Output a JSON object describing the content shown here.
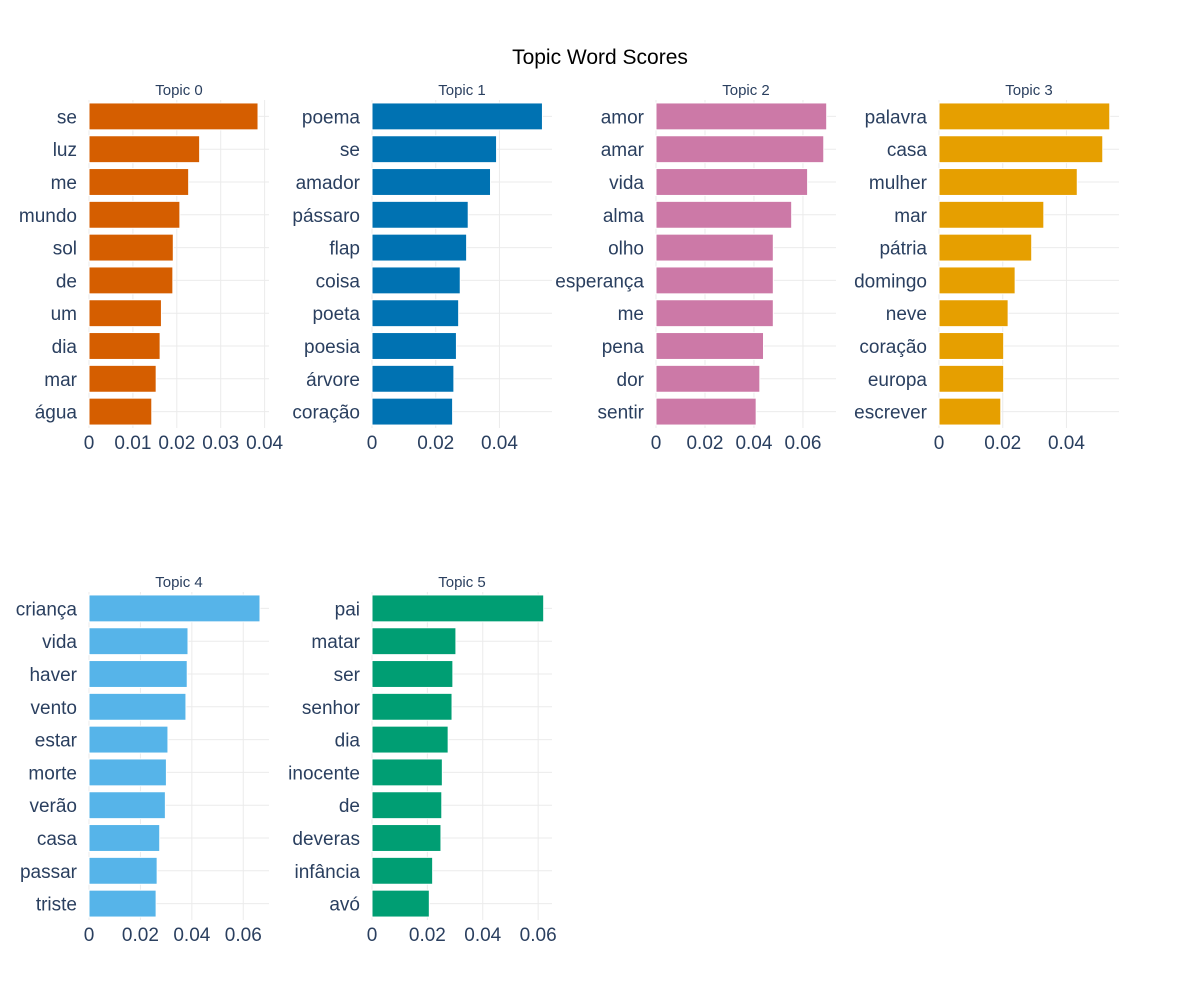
{
  "chart_data": {
    "type": "bar",
    "orientation": "horizontal",
    "title": "Topic Word Scores",
    "subplots": [
      {
        "title": "Topic 0",
        "color": "#D55E00",
        "words": [
          "se",
          "luz",
          "me",
          "mundo",
          "sol",
          "de",
          "um",
          "dia",
          "mar",
          "água"
        ],
        "values": [
          0.0385,
          0.0252,
          0.0227,
          0.0207,
          0.0192,
          0.0191,
          0.0165,
          0.0162,
          0.0153,
          0.0143
        ],
        "xlim": [
          0,
          0.041
        ],
        "ticks": [
          0,
          0.01,
          0.02,
          0.03,
          0.04
        ],
        "tick_labels": [
          "0",
          "0.01",
          "0.02",
          "0.03",
          "0.04"
        ]
      },
      {
        "title": "Topic 1",
        "color": "#0072B2",
        "words": [
          "poema",
          "se",
          "amador",
          "pássaro",
          "flap",
          "coisa",
          "poeta",
          "poesia",
          "árvore",
          "coração"
        ],
        "values": [
          0.0535,
          0.0391,
          0.0372,
          0.0302,
          0.0297,
          0.0277,
          0.0272,
          0.0265,
          0.0257,
          0.0253
        ],
        "xlim": [
          0,
          0.0565
        ],
        "ticks": [
          0,
          0.02,
          0.04
        ],
        "tick_labels": [
          "0",
          "0.02",
          "0.04"
        ]
      },
      {
        "title": "Topic 2",
        "color": "#CC79A7",
        "words": [
          "amor",
          "amar",
          "vida",
          "alma",
          "olho",
          "esperança",
          "me",
          "pena",
          "dor",
          "sentir"
        ],
        "values": [
          0.0697,
          0.0685,
          0.0619,
          0.0554,
          0.0479,
          0.0479,
          0.0479,
          0.0439,
          0.0424,
          0.0409
        ],
        "xlim": [
          0,
          0.0735
        ],
        "ticks": [
          0,
          0.02,
          0.04,
          0.06
        ],
        "tick_labels": [
          "0",
          "0.02",
          "0.04",
          "0.06"
        ]
      },
      {
        "title": "Topic 3",
        "color": "#E69F00",
        "words": [
          "palavra",
          "casa",
          "mulher",
          "mar",
          "pátria",
          "domingo",
          "neve",
          "coração",
          "europa",
          "escrever"
        ],
        "values": [
          0.0536,
          0.0514,
          0.0434,
          0.0329,
          0.0291,
          0.0239,
          0.0217,
          0.0203,
          0.0203,
          0.0194
        ],
        "xlim": [
          0,
          0.0565
        ],
        "ticks": [
          0,
          0.02,
          0.04
        ],
        "tick_labels": [
          "0",
          "0.02",
          "0.04"
        ]
      },
      {
        "title": "Topic 4",
        "color": "#56B4E9",
        "words": [
          "criança",
          "vida",
          "haver",
          "vento",
          "estar",
          "morte",
          "verão",
          "casa",
          "passar",
          "triste"
        ],
        "values": [
          0.0665,
          0.0385,
          0.0382,
          0.0377,
          0.0307,
          0.0301,
          0.0297,
          0.0275,
          0.0265,
          0.0261
        ],
        "xlim": [
          0,
          0.07
        ],
        "ticks": [
          0,
          0.02,
          0.04,
          0.06
        ],
        "tick_labels": [
          "0",
          "0.02",
          "0.04",
          "0.06"
        ]
      },
      {
        "title": "Topic 5",
        "color": "#009E73",
        "words": [
          "pai",
          "matar",
          "ser",
          "senhor",
          "dia",
          "inocente",
          "de",
          "deveras",
          "infância",
          "avó"
        ],
        "values": [
          0.062,
          0.0303,
          0.0292,
          0.0289,
          0.0275,
          0.0254,
          0.0252,
          0.0249,
          0.0219,
          0.0207
        ],
        "xlim": [
          0,
          0.065
        ],
        "ticks": [
          0,
          0.02,
          0.04,
          0.06
        ],
        "tick_labels": [
          "0",
          "0.02",
          "0.04",
          "0.06"
        ]
      }
    ]
  }
}
